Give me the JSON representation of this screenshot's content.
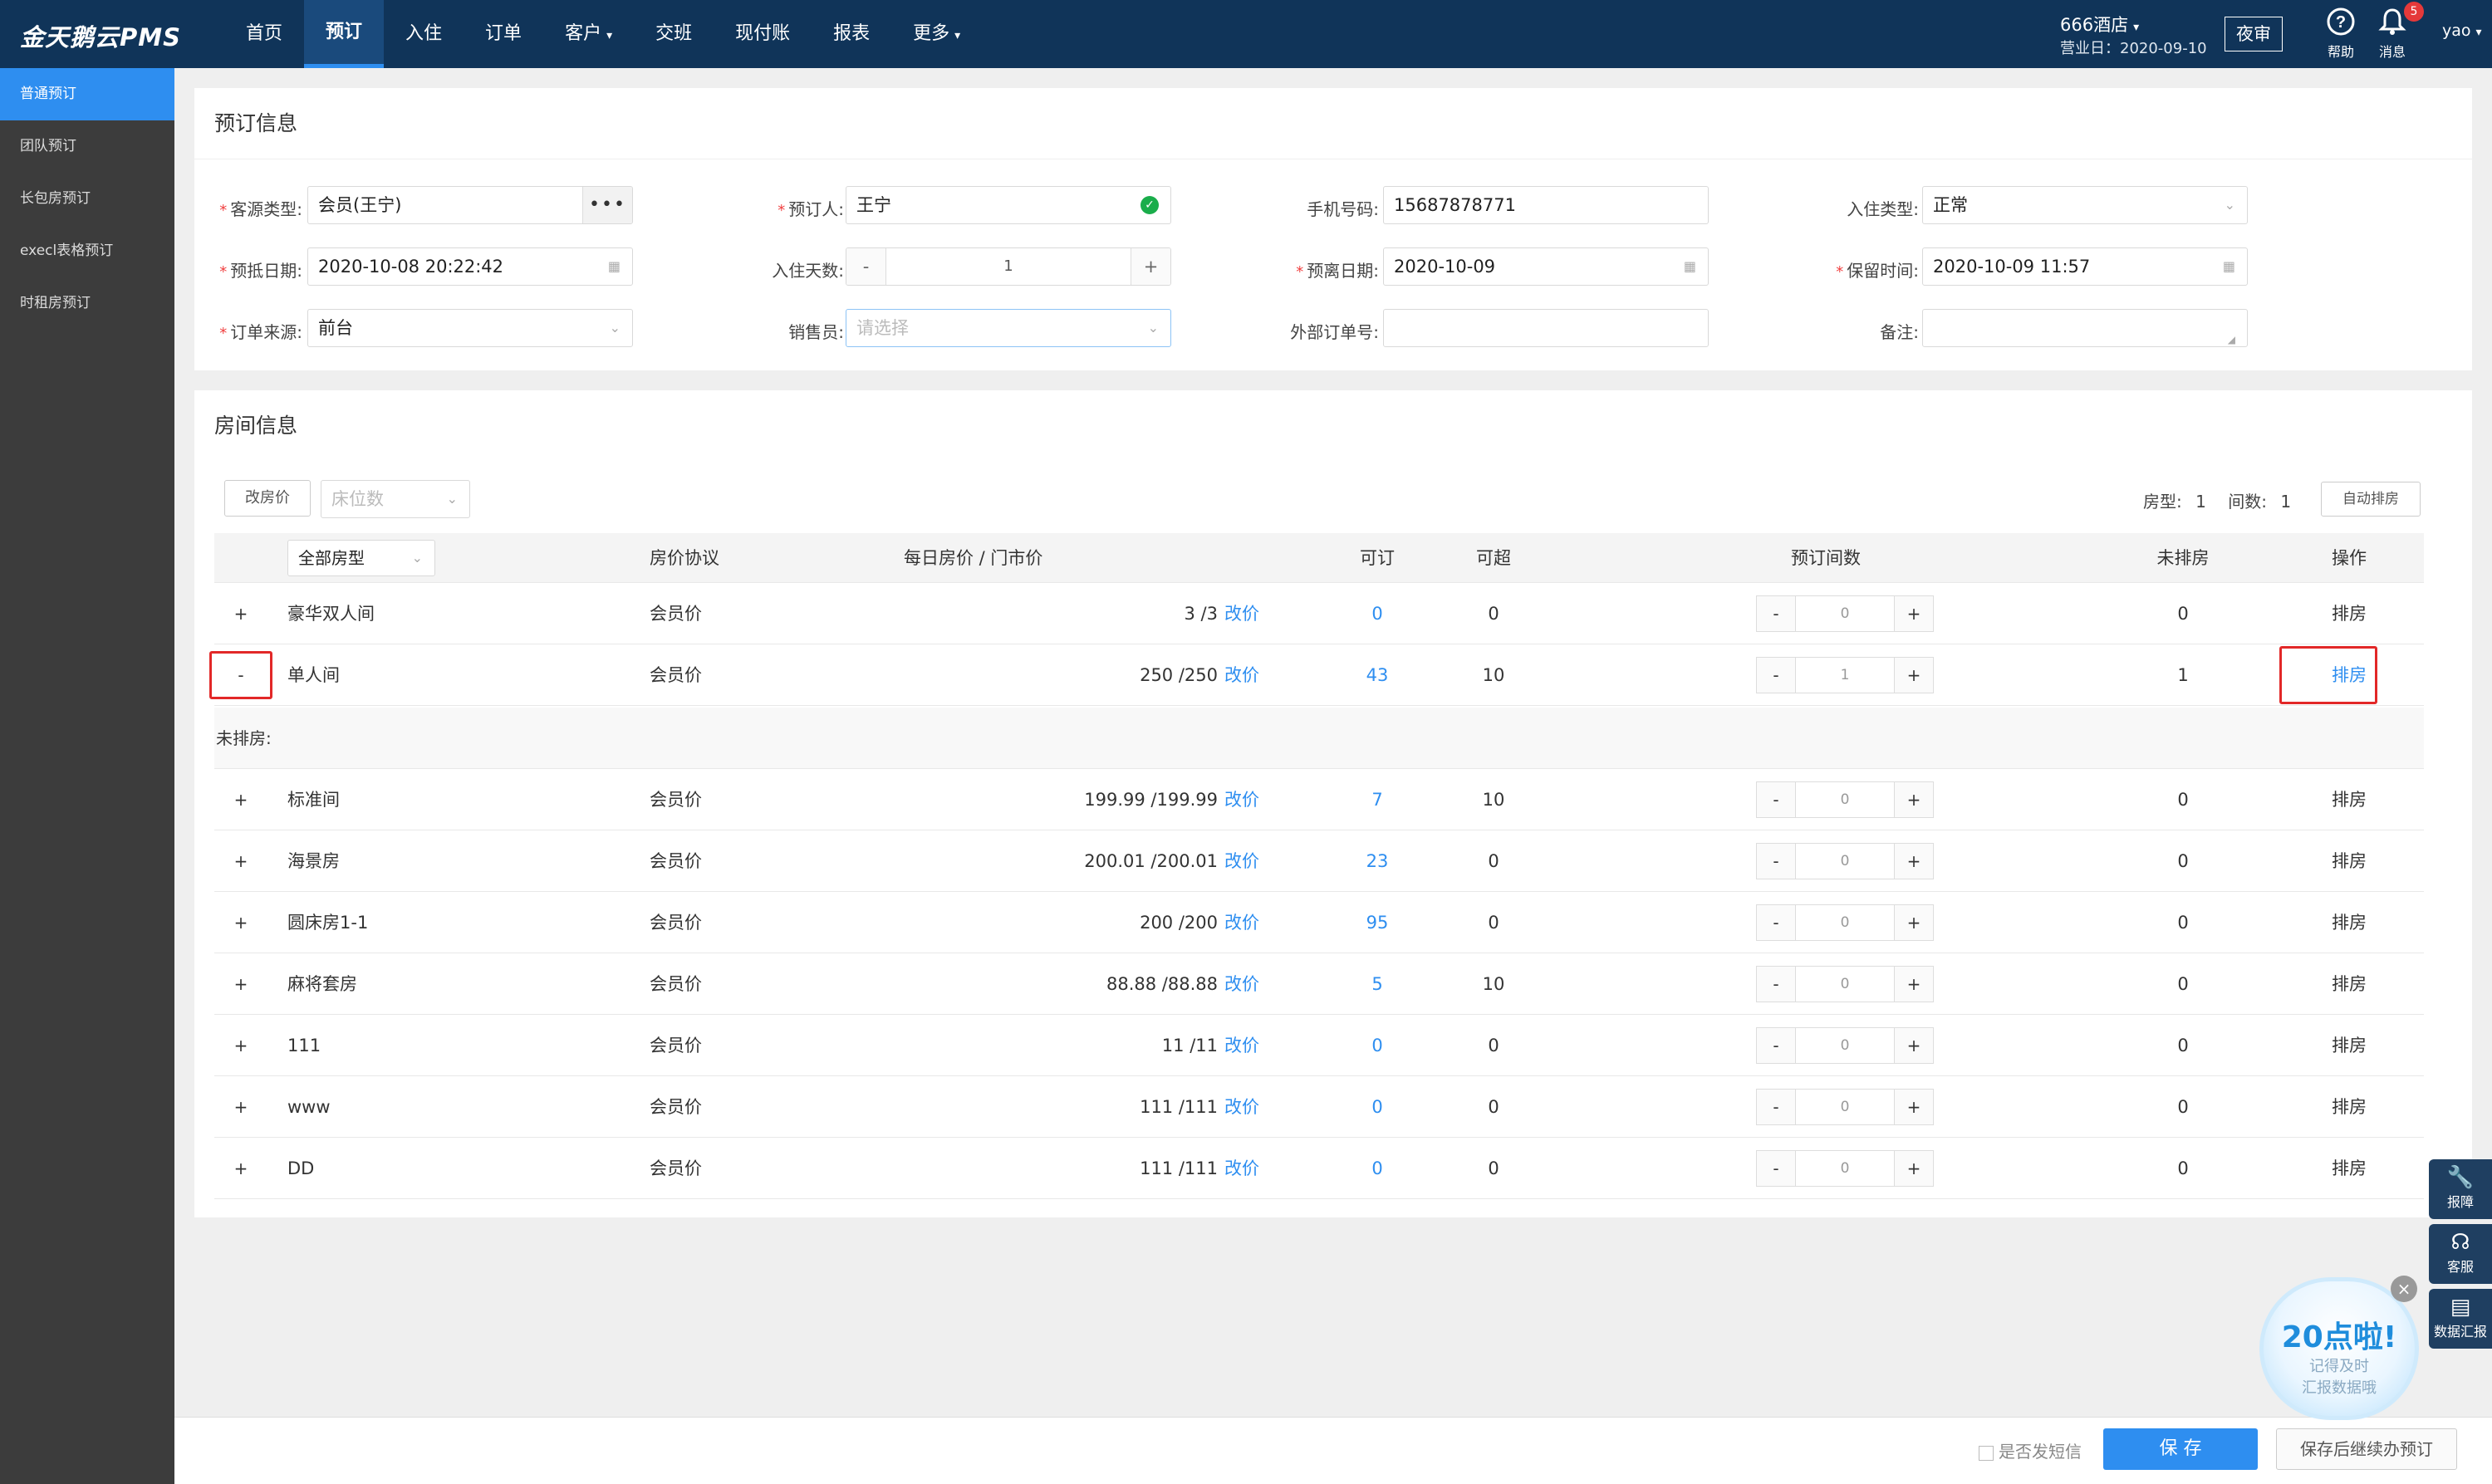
{
  "app": {
    "logo": "金天鹅云PMS"
  },
  "nav": {
    "items": [
      "首页",
      "预订",
      "入住",
      "订单",
      "客户",
      "交班",
      "现付账",
      "报表",
      "更多"
    ],
    "active": "预订"
  },
  "topright": {
    "hotel": "666酒店",
    "business_date": "营业日：2020-09-10",
    "night_audit": "夜审",
    "help_label": "帮助",
    "msg_label": "消息",
    "msg_count": "5",
    "user": "yao"
  },
  "sidebar": {
    "items": [
      "普通预订",
      "团队预订",
      "长包房预订",
      "execl表格预订",
      "时租房预订"
    ]
  },
  "booking": {
    "title": "预订信息",
    "source_type_label": "客源类型:",
    "source_type": "会员(王宁)",
    "booker_label": "预订人:",
    "booker": "王宁",
    "phone_label": "手机号码:",
    "phone": "15687878771",
    "checkin_type_label": "入住类型:",
    "checkin_type": "正常",
    "arrive_label": "预抵日期:",
    "arrive": "2020-10-08 20:22:42",
    "days_label": "入住天数:",
    "days": "1",
    "depart_label": "预离日期:",
    "depart": "2020-10-09",
    "hold_label": "保留时间:",
    "hold": "2020-10-09 11:57",
    "order_source_label": "订单来源:",
    "order_source": "前台",
    "sales_label": "销售员:",
    "sales_placeholder": "请选择",
    "ext_order_label": "外部订单号:",
    "remark_label": "备注:"
  },
  "rooms": {
    "title": "房间信息",
    "change_price": "改房价",
    "bed_count_placeholder": "床位数",
    "room_type_count_label": "房型:",
    "room_type_count": "1",
    "room_count_label": "间数:",
    "room_count": "1",
    "auto_assign": "自动排房",
    "headers": {
      "type": "全部房型",
      "protocol": "房价协议",
      "price": "每日房价 / 门市价",
      "avail": "可订",
      "over": "可超",
      "count": "预订间数",
      "unassigned": "未排房",
      "op": "操作"
    },
    "change_link": "改价",
    "unassigned_section": "未排房:",
    "rows": [
      {
        "exp": "+",
        "name": "豪华双人间",
        "protocol": "会员价",
        "price": "3 /3",
        "avail": "0",
        "over": "0",
        "count": "0",
        "unassigned": "0",
        "op": "排房"
      },
      {
        "exp": "-",
        "name": "单人间",
        "protocol": "会员价",
        "price": "250 /250",
        "avail": "43",
        "over": "10",
        "count": "1",
        "unassigned": "1",
        "op": "排房"
      },
      {
        "exp": "+",
        "name": "标准间",
        "protocol": "会员价",
        "price": "199.99 /199.99",
        "avail": "7",
        "over": "10",
        "count": "0",
        "unassigned": "0",
        "op": "排房"
      },
      {
        "exp": "+",
        "name": "海景房",
        "protocol": "会员价",
        "price": "200.01 /200.01",
        "avail": "23",
        "over": "0",
        "count": "0",
        "unassigned": "0",
        "op": "排房"
      },
      {
        "exp": "+",
        "name": "圆床房1-1",
        "protocol": "会员价",
        "price": "200 /200",
        "avail": "95",
        "over": "0",
        "count": "0",
        "unassigned": "0",
        "op": "排房"
      },
      {
        "exp": "+",
        "name": "麻将套房",
        "protocol": "会员价",
        "price": "88.88 /88.88",
        "avail": "5",
        "over": "10",
        "count": "0",
        "unassigned": "0",
        "op": "排房"
      },
      {
        "exp": "+",
        "name": "111",
        "protocol": "会员价",
        "price": "11 /11",
        "avail": "0",
        "over": "0",
        "count": "0",
        "unassigned": "0",
        "op": "排房"
      },
      {
        "exp": "+",
        "name": "www",
        "protocol": "会员价",
        "price": "111 /111",
        "avail": "0",
        "over": "0",
        "count": "0",
        "unassigned": "0",
        "op": "排房"
      },
      {
        "exp": "+",
        "name": "DD",
        "protocol": "会员价",
        "price": "111 /111",
        "avail": "0",
        "over": "0",
        "count": "0",
        "unassigned": "0",
        "op": "排房"
      }
    ]
  },
  "footer": {
    "sms": "是否发短信",
    "save": "保 存",
    "save_continue": "保存后继续办预订"
  },
  "float": {
    "report": "报障",
    "service": "客服",
    "data_report": "数据汇报"
  },
  "promo": {
    "big": "20点啦!",
    "line1": "记得及时",
    "line2": "汇报数据哦"
  },
  "colors": {
    "topbar": "#103459",
    "accent": "#2e8ef0",
    "sidebar": "#3c3c3c",
    "highlight": "#e22828"
  }
}
